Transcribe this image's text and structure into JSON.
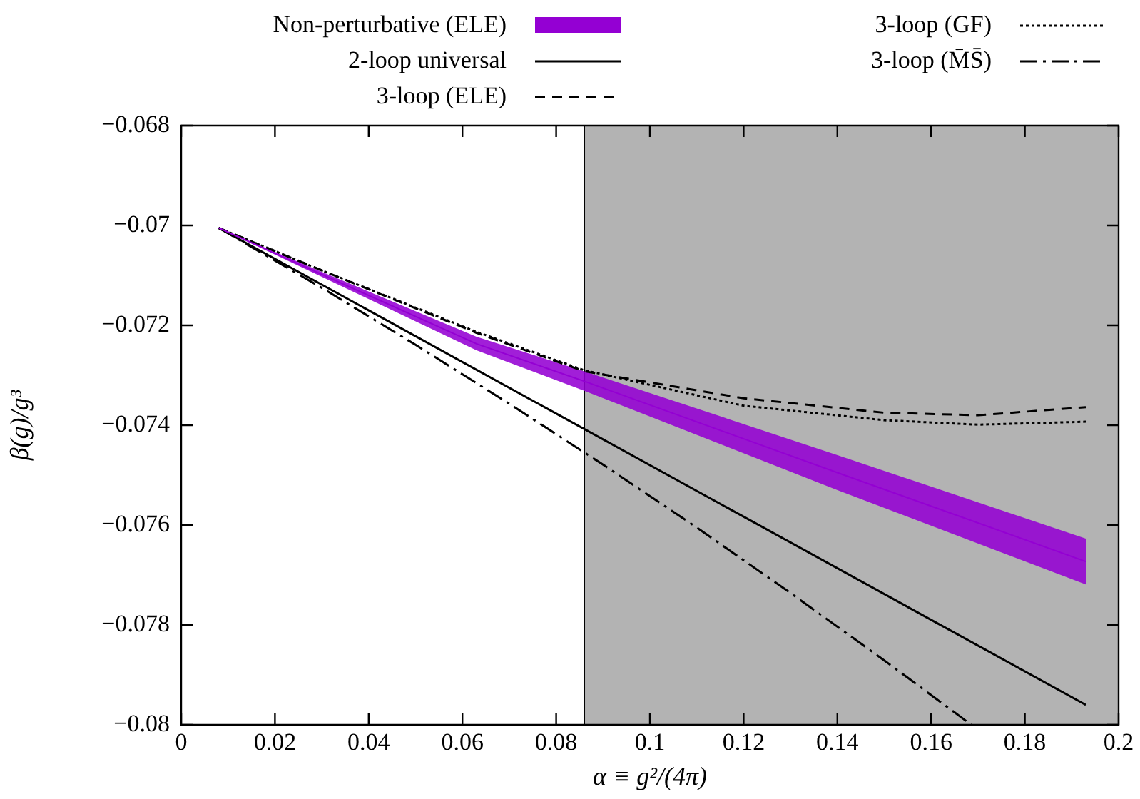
{
  "chart_data": {
    "type": "line",
    "xlabel": "α ≡ g²/(4π)",
    "ylabel": "β(g)/g³",
    "xlim": [
      0,
      0.2
    ],
    "xticks": [
      0,
      0.02,
      0.04,
      0.06,
      0.08,
      0.1,
      0.12,
      0.14,
      0.16,
      0.18,
      0.2
    ],
    "ylim": [
      -0.08,
      -0.068
    ],
    "yticks": [
      {
        "value": -0.08,
        "label": "−0.08"
      },
      {
        "value": -0.078,
        "label": "−0.078"
      },
      {
        "value": -0.076,
        "label": "−0.076"
      },
      {
        "value": -0.074,
        "label": "−0.074"
      },
      {
        "value": -0.072,
        "label": "−0.072"
      },
      {
        "value": -0.07,
        "label": "−0.07"
      },
      {
        "value": -0.068,
        "label": "−0.068"
      }
    ],
    "grid": false,
    "legend": "top",
    "marker": "none",
    "bands": [
      {
        "axis": "x",
        "from": 0.086,
        "to": 0.2,
        "color": "#b3b3b3"
      }
    ],
    "ref_lines": [
      {
        "axis": "x",
        "value": 0.086,
        "color": "#000000"
      }
    ],
    "series": [
      {
        "name": "Non-perturbative (ELE)",
        "color": "#9400d3",
        "type": "line",
        "x": [
          0.008,
          0.03,
          0.063,
          0.086,
          0.14,
          0.193
        ],
        "values": [
          -0.07005,
          -0.07098,
          -0.07237,
          -0.07312,
          -0.07495,
          -0.07673
        ],
        "lower": [
          -0.07005,
          -0.07103,
          -0.0725,
          -0.07331,
          -0.0753,
          -0.07719
        ],
        "upper": [
          -0.07005,
          -0.07093,
          -0.07223,
          -0.07292,
          -0.0746,
          -0.07627
        ]
      },
      {
        "name": "2-loop universal",
        "color": "#000000",
        "type": "line",
        "line_style": "solid",
        "x": [
          0.008,
          0.1,
          0.193
        ],
        "values": [
          -0.07005,
          -0.0748,
          -0.0796
        ]
      },
      {
        "name": "3-loop (ELE)",
        "color": "#000000",
        "type": "line",
        "line_style": "dashed",
        "x": [
          0.008,
          0.03,
          0.063,
          0.086,
          0.12,
          0.15,
          0.17,
          0.193
        ],
        "values": [
          -0.07005,
          -0.0709,
          -0.07215,
          -0.07292,
          -0.07346,
          -0.07375,
          -0.0738,
          -0.07364
        ]
      },
      {
        "name": "3-loop (GF)",
        "color": "#000000",
        "type": "line",
        "line_style": "dotted",
        "x": [
          0.008,
          0.03,
          0.063,
          0.086,
          0.12,
          0.15,
          0.17,
          0.193
        ],
        "values": [
          -0.07005,
          -0.0709,
          -0.07213,
          -0.0729,
          -0.07361,
          -0.0739,
          -0.07399,
          -0.07393
        ]
      },
      {
        "name": "3-loop (M̄S̄)",
        "color": "#000000",
        "type": "line",
        "line_style": "dashdot",
        "x": [
          0.008,
          0.03,
          0.05,
          0.07,
          0.09,
          0.11,
          0.13,
          0.15,
          0.1686
        ],
        "values": [
          -0.07005,
          -0.07125,
          -0.07239,
          -0.07357,
          -0.07479,
          -0.07605,
          -0.07736,
          -0.07871,
          -0.08
        ]
      }
    ]
  }
}
